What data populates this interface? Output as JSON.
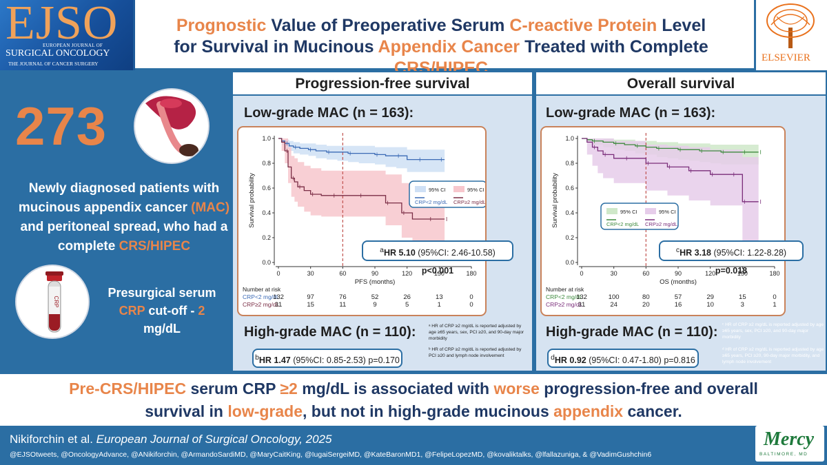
{
  "header": {
    "journal_logo": {
      "big": "EJSO",
      "line1": "EUROPEAN JOURNAL OF",
      "line2": "SURGICAL ONCOLOGY",
      "line3": "THE JOURNAL OF CANCER SURGERY"
    },
    "title": {
      "line1": [
        {
          "text": "Prognostic",
          "hl": true
        },
        {
          "text": " Value of Preoperative Serum ",
          "hl": false
        },
        {
          "text": "C-reactive Protein",
          "hl": true
        },
        {
          "text": " Level",
          "hl": false
        }
      ],
      "line2": [
        {
          "text": "for Survival in Mucinous ",
          "hl": false
        },
        {
          "text": "Appendix Cancer",
          "hl": true
        },
        {
          "text": " Treated with Complete ",
          "hl": false
        },
        {
          "text": "CRS/HIPEC",
          "hl": true
        }
      ]
    },
    "publisher": "ELSEVIER"
  },
  "left": {
    "patients": "273",
    "description": [
      {
        "text": "Newly diagnosed patients with mucinous appendix cancer ",
        "hl": false
      },
      {
        "text": "(MAC)",
        "hl": true
      },
      {
        "text": " and peritoneal spread, who had a complete ",
        "hl": false
      },
      {
        "text": "CRS/HIPEC",
        "hl": true
      }
    ],
    "crp_note": [
      {
        "text": "Presurgical serum ",
        "hl": false
      },
      {
        "text": "CRP",
        "hl": true
      },
      {
        "text": " cut-off - ",
        "hl": false
      },
      {
        "text": "2",
        "hl": true
      },
      {
        "text": " mg/dL",
        "hl": false
      }
    ],
    "tube_label": "CRP"
  },
  "pfs": {
    "heading": "Progression-free survival",
    "low_title": "Low-grade MAC (n = 163):",
    "high_title": "High-grade MAC (n = 110):",
    "hr_low": {
      "sup": "a",
      "label": "HR 5.10",
      "ci": " (95%CI: 2.46-10.58) ",
      "p": "p<0.001"
    },
    "hr_high": {
      "sup": "b",
      "label": "HR 1.47",
      "ci": " (95%CI: 0.85-2.53) ",
      "p": "p=0.170"
    },
    "footnote_a": "ᵃ HR of CRP ≥2 mg/dL is reported adjusted by age ≥65 years, sex, PCI ≥20, and 90-day major morbidity",
    "footnote_b": "ᵇ HR of CRP ≥2 mg/dL is reported adjusted by PCI ≥20 and lymph node involvement"
  },
  "os": {
    "heading": "Overall survival",
    "low_title": "Low-grade MAC (n = 163):",
    "high_title": "High-grade MAC (n = 110):",
    "hr_low": {
      "sup": "c",
      "label": "HR 3.18",
      "ci": " (95%CI: 1.22-8.28) ",
      "p": "p=0.018"
    },
    "hr_high": {
      "sup": "d",
      "label": "HR 0.92",
      "ci": " (95%CI: 0.47-1.80) ",
      "p": "p=0.816"
    },
    "footnote_c": "ᶜ HR of CRP ≥2 mg/dL is reported adjusted by age ≥65 years, sex, PCI ≥20, and 90-day major morbidity",
    "footnote_d": "ᵈ HR of CRP ≥2 mg/dL is reported adjusted by age ≥65 years, PCI ≥20, 90-day major morbidity, and lymph node involvement"
  },
  "colors": {
    "low_crp": "#3b6ab5",
    "low_ci": "#cfe0f5",
    "high_crp": "#7a2d45",
    "high_ci": "#f7c7cd",
    "os_low": "#3d8a3d",
    "os_low_ci": "#cfe8c9",
    "os_high": "#7a2d7a",
    "os_high_ci": "#e6cdea",
    "accent": "#e8854a"
  },
  "chart_data": [
    {
      "type": "line",
      "title": "",
      "xlabel": "PFS (months)",
      "ylabel": "Survival probability",
      "xlim": [
        0,
        180
      ],
      "ylim": [
        0,
        1.0
      ],
      "xticks": [
        0,
        30,
        60,
        90,
        120,
        150,
        180
      ],
      "yticks": [
        "0.0",
        "0.2",
        "0.4",
        "0.6",
        "0.8",
        "1.0"
      ],
      "cutoff_line": 60,
      "legend": [
        {
          "ci": "95% CI",
          "line": "CRP<2 mg/dL"
        },
        {
          "ci": "95% CI",
          "line": "CRP≥2 mg/dL"
        }
      ],
      "series": [
        {
          "name": "CRP<2 mg/dL",
          "color": "#3b6ab5",
          "ci_color": "#cfe0f5",
          "x": [
            0,
            3,
            6,
            10,
            14,
            20,
            28,
            35,
            45,
            55,
            65,
            75,
            90,
            100,
            110,
            120,
            130,
            140,
            150,
            155
          ],
          "y": [
            1.0,
            0.98,
            0.96,
            0.94,
            0.93,
            0.92,
            0.91,
            0.9,
            0.89,
            0.89,
            0.88,
            0.88,
            0.87,
            0.86,
            0.86,
            0.83,
            0.83,
            0.83,
            0.83,
            0.83
          ],
          "lo": [
            1.0,
            0.95,
            0.92,
            0.9,
            0.88,
            0.87,
            0.86,
            0.84,
            0.83,
            0.82,
            0.81,
            0.8,
            0.79,
            0.77,
            0.76,
            0.73,
            0.73,
            0.73,
            0.73,
            0.73
          ],
          "hi": [
            1.0,
            1.0,
            0.99,
            0.98,
            0.97,
            0.96,
            0.96,
            0.95,
            0.94,
            0.94,
            0.94,
            0.94,
            0.93,
            0.93,
            0.93,
            0.91,
            0.91,
            0.91,
            0.91,
            0.91
          ]
        },
        {
          "name": "CRP≥2 mg/dL",
          "color": "#7a2d45",
          "ci_color": "#f7c7cd",
          "x": [
            0,
            3,
            6,
            9,
            12,
            15,
            18,
            24,
            30,
            40,
            50,
            60,
            75,
            90,
            100,
            110,
            115,
            125,
            140,
            150,
            155
          ],
          "y": [
            1.0,
            0.97,
            0.9,
            0.77,
            0.68,
            0.65,
            0.61,
            0.58,
            0.55,
            0.54,
            0.54,
            0.54,
            0.54,
            0.54,
            0.48,
            0.48,
            0.4,
            0.35,
            0.35,
            0.35,
            0.35
          ],
          "lo": [
            1.0,
            0.9,
            0.8,
            0.64,
            0.53,
            0.49,
            0.45,
            0.41,
            0.38,
            0.37,
            0.37,
            0.37,
            0.37,
            0.37,
            0.3,
            0.3,
            0.2,
            0.16,
            0.16,
            0.16,
            0.16
          ],
          "hi": [
            1.0,
            1.0,
            1.0,
            0.93,
            0.86,
            0.84,
            0.81,
            0.78,
            0.76,
            0.74,
            0.74,
            0.74,
            0.74,
            0.74,
            0.71,
            0.71,
            0.64,
            0.6,
            0.6,
            0.6,
            0.6
          ]
        }
      ],
      "risk_table": {
        "title": "Number at risk",
        "rows": [
          {
            "label": "CRP<2 mg/dL",
            "values": [
              "132",
              "97",
              "76",
              "52",
              "26",
              "13",
              "0"
            ]
          },
          {
            "label": "CRP≥2 mg/dL",
            "values": [
              "31",
              "15",
              "11",
              "9",
              "5",
              "1",
              "0"
            ]
          }
        ]
      }
    },
    {
      "type": "line",
      "title": "",
      "xlabel": "OS (months)",
      "ylabel": "Survival probability",
      "xlim": [
        0,
        180
      ],
      "ylim": [
        0,
        1.0
      ],
      "xticks": [
        0,
        30,
        60,
        90,
        120,
        150,
        180
      ],
      "yticks": [
        "0.0",
        "0.2",
        "0.4",
        "0.6",
        "0.8",
        "1.0"
      ],
      "cutoff_line": 60,
      "legend": [
        {
          "ci": "95% CI",
          "line": "CRP<2 mg/dL"
        },
        {
          "ci": "95% CI",
          "line": "CRP≥2 mg/dL"
        }
      ],
      "series": [
        {
          "name": "CRP<2 mg/dL",
          "color": "#3d8a3d",
          "ci_color": "#cfe8c9",
          "x": [
            0,
            5,
            10,
            20,
            30,
            40,
            50,
            60,
            70,
            80,
            90,
            100,
            110,
            120,
            130,
            140,
            150,
            160,
            165
          ],
          "y": [
            1.0,
            0.99,
            0.98,
            0.97,
            0.96,
            0.95,
            0.94,
            0.93,
            0.92,
            0.92,
            0.91,
            0.91,
            0.9,
            0.9,
            0.89,
            0.89,
            0.89,
            0.89,
            0.89
          ],
          "lo": [
            1.0,
            0.97,
            0.95,
            0.93,
            0.91,
            0.9,
            0.88,
            0.87,
            0.85,
            0.84,
            0.83,
            0.82,
            0.81,
            0.8,
            0.79,
            0.79,
            0.79,
            0.79,
            0.79
          ],
          "hi": [
            1.0,
            1.0,
            1.0,
            1.0,
            0.99,
            0.99,
            0.98,
            0.98,
            0.97,
            0.97,
            0.96,
            0.96,
            0.96,
            0.95,
            0.95,
            0.95,
            0.95,
            0.95,
            0.95
          ]
        },
        {
          "name": "CRP≥2 mg/dL",
          "color": "#7a2d7a",
          "ci_color": "#e6cdea",
          "x": [
            0,
            5,
            10,
            15,
            20,
            30,
            40,
            50,
            60,
            70,
            80,
            90,
            100,
            110,
            120,
            130,
            140,
            145,
            150,
            160,
            165
          ],
          "y": [
            1.0,
            0.97,
            0.93,
            0.9,
            0.87,
            0.84,
            0.84,
            0.84,
            0.8,
            0.8,
            0.77,
            0.77,
            0.74,
            0.74,
            0.71,
            0.71,
            0.71,
            0.71,
            0.49,
            0.49,
            0.49
          ],
          "lo": [
            1.0,
            0.87,
            0.78,
            0.72,
            0.68,
            0.64,
            0.64,
            0.64,
            0.58,
            0.58,
            0.54,
            0.54,
            0.5,
            0.5,
            0.46,
            0.46,
            0.46,
            0.46,
            0.15,
            0.15,
            0.15
          ],
          "hi": [
            1.0,
            1.0,
            1.0,
            1.0,
            1.0,
            0.98,
            0.98,
            0.98,
            0.95,
            0.95,
            0.94,
            0.94,
            0.93,
            0.93,
            0.91,
            0.91,
            0.91,
            0.91,
            0.85,
            0.85,
            0.85
          ]
        }
      ],
      "risk_table": {
        "title": "Number at risk",
        "rows": [
          {
            "label": "CRP<2 mg/dL",
            "values": [
              "132",
              "100",
              "80",
              "57",
              "29",
              "15",
              "0"
            ]
          },
          {
            "label": "CRP≥2 mg/dL",
            "values": [
              "31",
              "24",
              "20",
              "16",
              "10",
              "3",
              "1"
            ]
          }
        ]
      }
    }
  ],
  "conclusion": {
    "line1": [
      {
        "text": "Pre-CRS/HIPEC",
        "hl": true
      },
      {
        "text": " serum CRP ",
        "hl": false
      },
      {
        "text": "≥2",
        "hl": true
      },
      {
        "text": " mg/dL is associated with ",
        "hl": false
      },
      {
        "text": "worse",
        "hl": true
      },
      {
        "text": " progression-free and overall",
        "hl": false
      }
    ],
    "line2": [
      {
        "text": "survival in ",
        "hl": false
      },
      {
        "text": "low-grade",
        "hl": true
      },
      {
        "text": ", but not in high-grade mucinous ",
        "hl": false
      },
      {
        "text": "appendix",
        "hl": true
      },
      {
        "text": " cancer.",
        "hl": false
      }
    ]
  },
  "footer": {
    "authors": "Nikiforchin et al. ",
    "journal": "European Journal of Surgical Oncology, 2025",
    "handles": "@EJSOtweets, @OncologyAdvance, @ANikiforchin, @ArmandoSardiMD, @MaryCaitKing, @IugaiSergeiMD, @KateBaronMD1, @FelipeLopezMD, @kovaliktalks, @lfallazuniga, & @VadimGushchin6",
    "mercy": {
      "name": "Mercy",
      "city": "BALTIMORE, MD"
    }
  }
}
